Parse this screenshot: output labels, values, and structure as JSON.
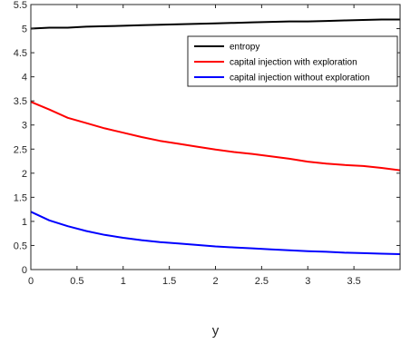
{
  "chart_data": {
    "type": "line",
    "title": "",
    "xlabel": "y",
    "ylabel": "",
    "xlim": [
      0,
      4
    ],
    "ylim": [
      0,
      5.5
    ],
    "xticks": [
      "0",
      "0.5",
      "1",
      "1.5",
      "2",
      "2.5",
      "3",
      "3.5"
    ],
    "yticks": [
      "0",
      "0.5",
      "1",
      "1.5",
      "2",
      "2.5",
      "3",
      "3.5",
      "4",
      "4.5",
      "5",
      "5.5"
    ],
    "grid": false,
    "legend_position": "top-right",
    "series": [
      {
        "name": "entropy",
        "color": "#000000",
        "x": [
          0,
          0.2,
          0.4,
          0.6,
          0.8,
          1.0,
          1.2,
          1.4,
          1.6,
          1.8,
          2.0,
          2.2,
          2.4,
          2.6,
          2.8,
          3.0,
          3.2,
          3.4,
          3.6,
          3.8,
          4.0
        ],
        "y": [
          5.0,
          5.02,
          5.02,
          5.04,
          5.05,
          5.06,
          5.07,
          5.08,
          5.09,
          5.1,
          5.11,
          5.12,
          5.13,
          5.14,
          5.15,
          5.15,
          5.16,
          5.17,
          5.18,
          5.19,
          5.19
        ]
      },
      {
        "name": "capital injection with exploration",
        "color": "#ff0000",
        "x": [
          0,
          0.2,
          0.4,
          0.6,
          0.8,
          1.0,
          1.2,
          1.4,
          1.6,
          1.8,
          2.0,
          2.2,
          2.4,
          2.6,
          2.8,
          3.0,
          3.2,
          3.4,
          3.6,
          3.8,
          4.0
        ],
        "y": [
          3.48,
          3.32,
          3.15,
          3.04,
          2.93,
          2.84,
          2.75,
          2.67,
          2.61,
          2.55,
          2.49,
          2.44,
          2.4,
          2.35,
          2.3,
          2.24,
          2.2,
          2.17,
          2.15,
          2.11,
          2.06
        ]
      },
      {
        "name": "capital injection without exploration",
        "color": "#0000ff",
        "x": [
          0,
          0.2,
          0.4,
          0.6,
          0.8,
          1.0,
          1.2,
          1.4,
          1.6,
          1.8,
          2.0,
          2.2,
          2.4,
          2.6,
          2.8,
          3.0,
          3.2,
          3.4,
          3.6,
          3.8,
          4.0
        ],
        "y": [
          1.2,
          1.02,
          0.9,
          0.8,
          0.72,
          0.66,
          0.61,
          0.57,
          0.54,
          0.51,
          0.48,
          0.46,
          0.44,
          0.42,
          0.4,
          0.38,
          0.37,
          0.35,
          0.34,
          0.33,
          0.32
        ]
      }
    ]
  }
}
